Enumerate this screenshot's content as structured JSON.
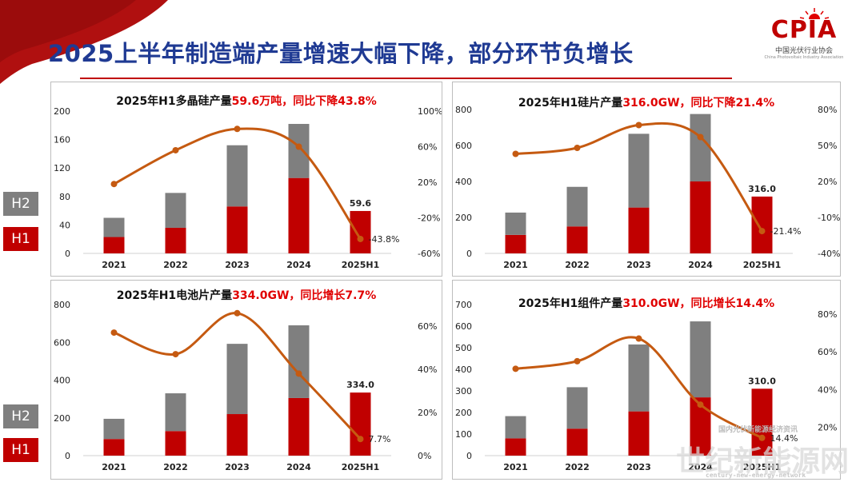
{
  "page": {
    "title": "2025上半年制造端产量增速大幅下降，部分环节负增长",
    "logo": {
      "text": "CPIA",
      "cn": "中国光伏行业协会",
      "en": "China Photovoltaic Industry Association"
    },
    "watermark": {
      "main": "世纪新能源网",
      "sub": "century-new-energy-network",
      "small": "国内光伏新能源经济资讯"
    }
  },
  "legend": {
    "h2": "H2",
    "h1": "H1"
  },
  "colors": {
    "h1": "#c00000",
    "h2": "#7f7f7f",
    "line": "#c55a11",
    "title_blue": "#1f3a93",
    "highlight": "#e00000"
  },
  "chart_data": [
    {
      "type": "bar",
      "title": {
        "prefix": "2025年H1多晶硅产量",
        "highlight": "59.6万吨，同比下降43.8%"
      },
      "categories": [
        "2021",
        "2022",
        "2023",
        "2024",
        "2025H1"
      ],
      "stacked": true,
      "series": [
        {
          "name": "H1",
          "values": [
            23,
            36,
            66,
            106,
            59.6
          ]
        },
        {
          "name": "H2",
          "values": [
            27,
            49,
            86,
            76,
            0
          ]
        }
      ],
      "line": {
        "axis": "right",
        "values": [
          18,
          56,
          80,
          60,
          -43.8
        ]
      },
      "left_axis": {
        "ticks": [
          "0",
          "40",
          "80",
          "120",
          "160",
          "200"
        ],
        "range": [
          0,
          200
        ]
      },
      "right_axis": {
        "ticks": [
          "-60%",
          "-20%",
          "20%",
          "60%",
          "100%"
        ],
        "range": [
          -60,
          100
        ]
      },
      "labels": {
        "bar": "59.6",
        "line": "-43.8%"
      }
    },
    {
      "type": "bar",
      "title": {
        "prefix": "2025年H1硅片产量",
        "highlight": "316.0GW，同比下降21.4%"
      },
      "categories": [
        "2021",
        "2022",
        "2023",
        "2024",
        "2025H1"
      ],
      "stacked": true,
      "series": [
        {
          "name": "H1",
          "values": [
            103,
            150,
            255,
            400,
            316
          ]
        },
        {
          "name": "H2",
          "values": [
            124,
            220,
            410,
            375,
            0
          ]
        }
      ],
      "line": {
        "axis": "right",
        "values": [
          43,
          48,
          67,
          57,
          -21.4
        ]
      },
      "left_axis": {
        "ticks": [
          "0",
          "200",
          "400",
          "600",
          "800"
        ],
        "range": [
          0,
          800
        ]
      },
      "right_axis": {
        "ticks": [
          "-40%",
          "-10%",
          "20%",
          "50%",
          "80%"
        ],
        "range": [
          -40,
          80
        ]
      },
      "labels": {
        "bar": "316.0",
        "line": "-21.4%"
      }
    },
    {
      "type": "bar",
      "title": {
        "prefix": "2025年H1电池片产量",
        "highlight": "334.0GW，同比增长7.7%"
      },
      "categories": [
        "2021",
        "2022",
        "2023",
        "2024",
        "2025H1"
      ],
      "stacked": true,
      "series": [
        {
          "name": "H1",
          "values": [
            88,
            130,
            220,
            305,
            334
          ]
        },
        {
          "name": "H2",
          "values": [
            107,
            200,
            372,
            385,
            0
          ]
        }
      ],
      "line": {
        "axis": "right",
        "values": [
          57,
          47,
          66,
          38,
          7.7
        ]
      },
      "left_axis": {
        "ticks": [
          "0",
          "200",
          "400",
          "600",
          "800"
        ],
        "range": [
          0,
          800
        ]
      },
      "right_axis": {
        "ticks": [
          "0%",
          "20%",
          "40%",
          "60%"
        ],
        "range": [
          0,
          70
        ]
      },
      "labels": {
        "bar": "334.0",
        "line": "7.7%"
      }
    },
    {
      "type": "bar",
      "title": {
        "prefix": "2025年H1组件产量",
        "highlight": "310.0GW，同比增长14.4%"
      },
      "categories": [
        "2021",
        "2022",
        "2023",
        "2024",
        "2025H1"
      ],
      "stacked": true,
      "series": [
        {
          "name": "H1",
          "values": [
            80,
            125,
            205,
            270,
            310
          ]
        },
        {
          "name": "H2",
          "values": [
            103,
            192,
            310,
            352,
            0
          ]
        }
      ],
      "line": {
        "axis": "right",
        "values": [
          51,
          55,
          67,
          32,
          14.4
        ]
      },
      "left_axis": {
        "ticks": [
          "0",
          "100",
          "200",
          "300",
          "400",
          "500",
          "600",
          "700"
        ],
        "range": [
          0,
          700
        ]
      },
      "right_axis": {
        "ticks": [
          "20%",
          "40%",
          "60%",
          "80%"
        ],
        "range": [
          5,
          85
        ]
      },
      "labels": {
        "bar": "310.0",
        "line": "14.4%"
      }
    }
  ]
}
